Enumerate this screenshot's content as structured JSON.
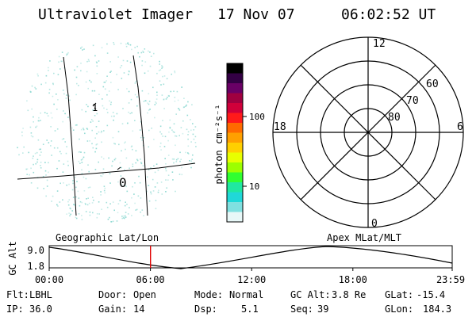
{
  "header": {
    "title": "Ultraviolet Imager",
    "date": "17 Nov 07",
    "time": "06:02:52 UT"
  },
  "colorbar": {
    "label": "photon cm⁻²s⁻¹",
    "ticks": [
      "100",
      "10"
    ],
    "colors": [
      "#000000",
      "#330044",
      "#6a0066",
      "#a00040",
      "#d0003a",
      "#ff1a1a",
      "#ff6a00",
      "#ffa000",
      "#ffd000",
      "#e8ff00",
      "#9cff00",
      "#30ff30",
      "#20e8a0",
      "#20d8d8",
      "#80e0e0",
      "#e8f8f8"
    ]
  },
  "map": {
    "label_1": "1",
    "label_0": "0",
    "dot_color": "#7fd4cc"
  },
  "polar": {
    "mlt_labels": {
      "top": "12",
      "bottom": "0",
      "left": "18",
      "right": "6"
    },
    "lat_labels": [
      "60",
      "70",
      "80"
    ]
  },
  "orbit": {
    "left_label": "Geographic Lat/Lon",
    "right_label": "Apex MLat/MLT",
    "axis_name": "GC Alt",
    "y_ticks": [
      "9.0",
      "1.8"
    ],
    "x_ticks": [
      "00:00",
      "06:00",
      "12:00",
      "18:00",
      "23:59"
    ],
    "marker_color": "#e00000",
    "marker_fraction": 0.2513
  },
  "footer": {
    "rows": [
      [
        {
          "label": "Flt:",
          "value": "LBHL"
        },
        {
          "label": "Door:",
          "value": "Open"
        },
        {
          "label": "Mode:",
          "value": "Normal"
        },
        {
          "label": "GC Alt:",
          "value": "3.8 Re"
        },
        {
          "label": "GLat:",
          "value": "-15.4"
        }
      ],
      [
        {
          "label": "IP:",
          "value": "36.0"
        },
        {
          "label": "Gain:",
          "value": "14"
        },
        {
          "label": "Dsp:",
          "value": "5.1"
        },
        {
          "label": "Seq:",
          "value": "39"
        },
        {
          "label": "GLon:",
          "value": "184.3"
        }
      ]
    ]
  }
}
